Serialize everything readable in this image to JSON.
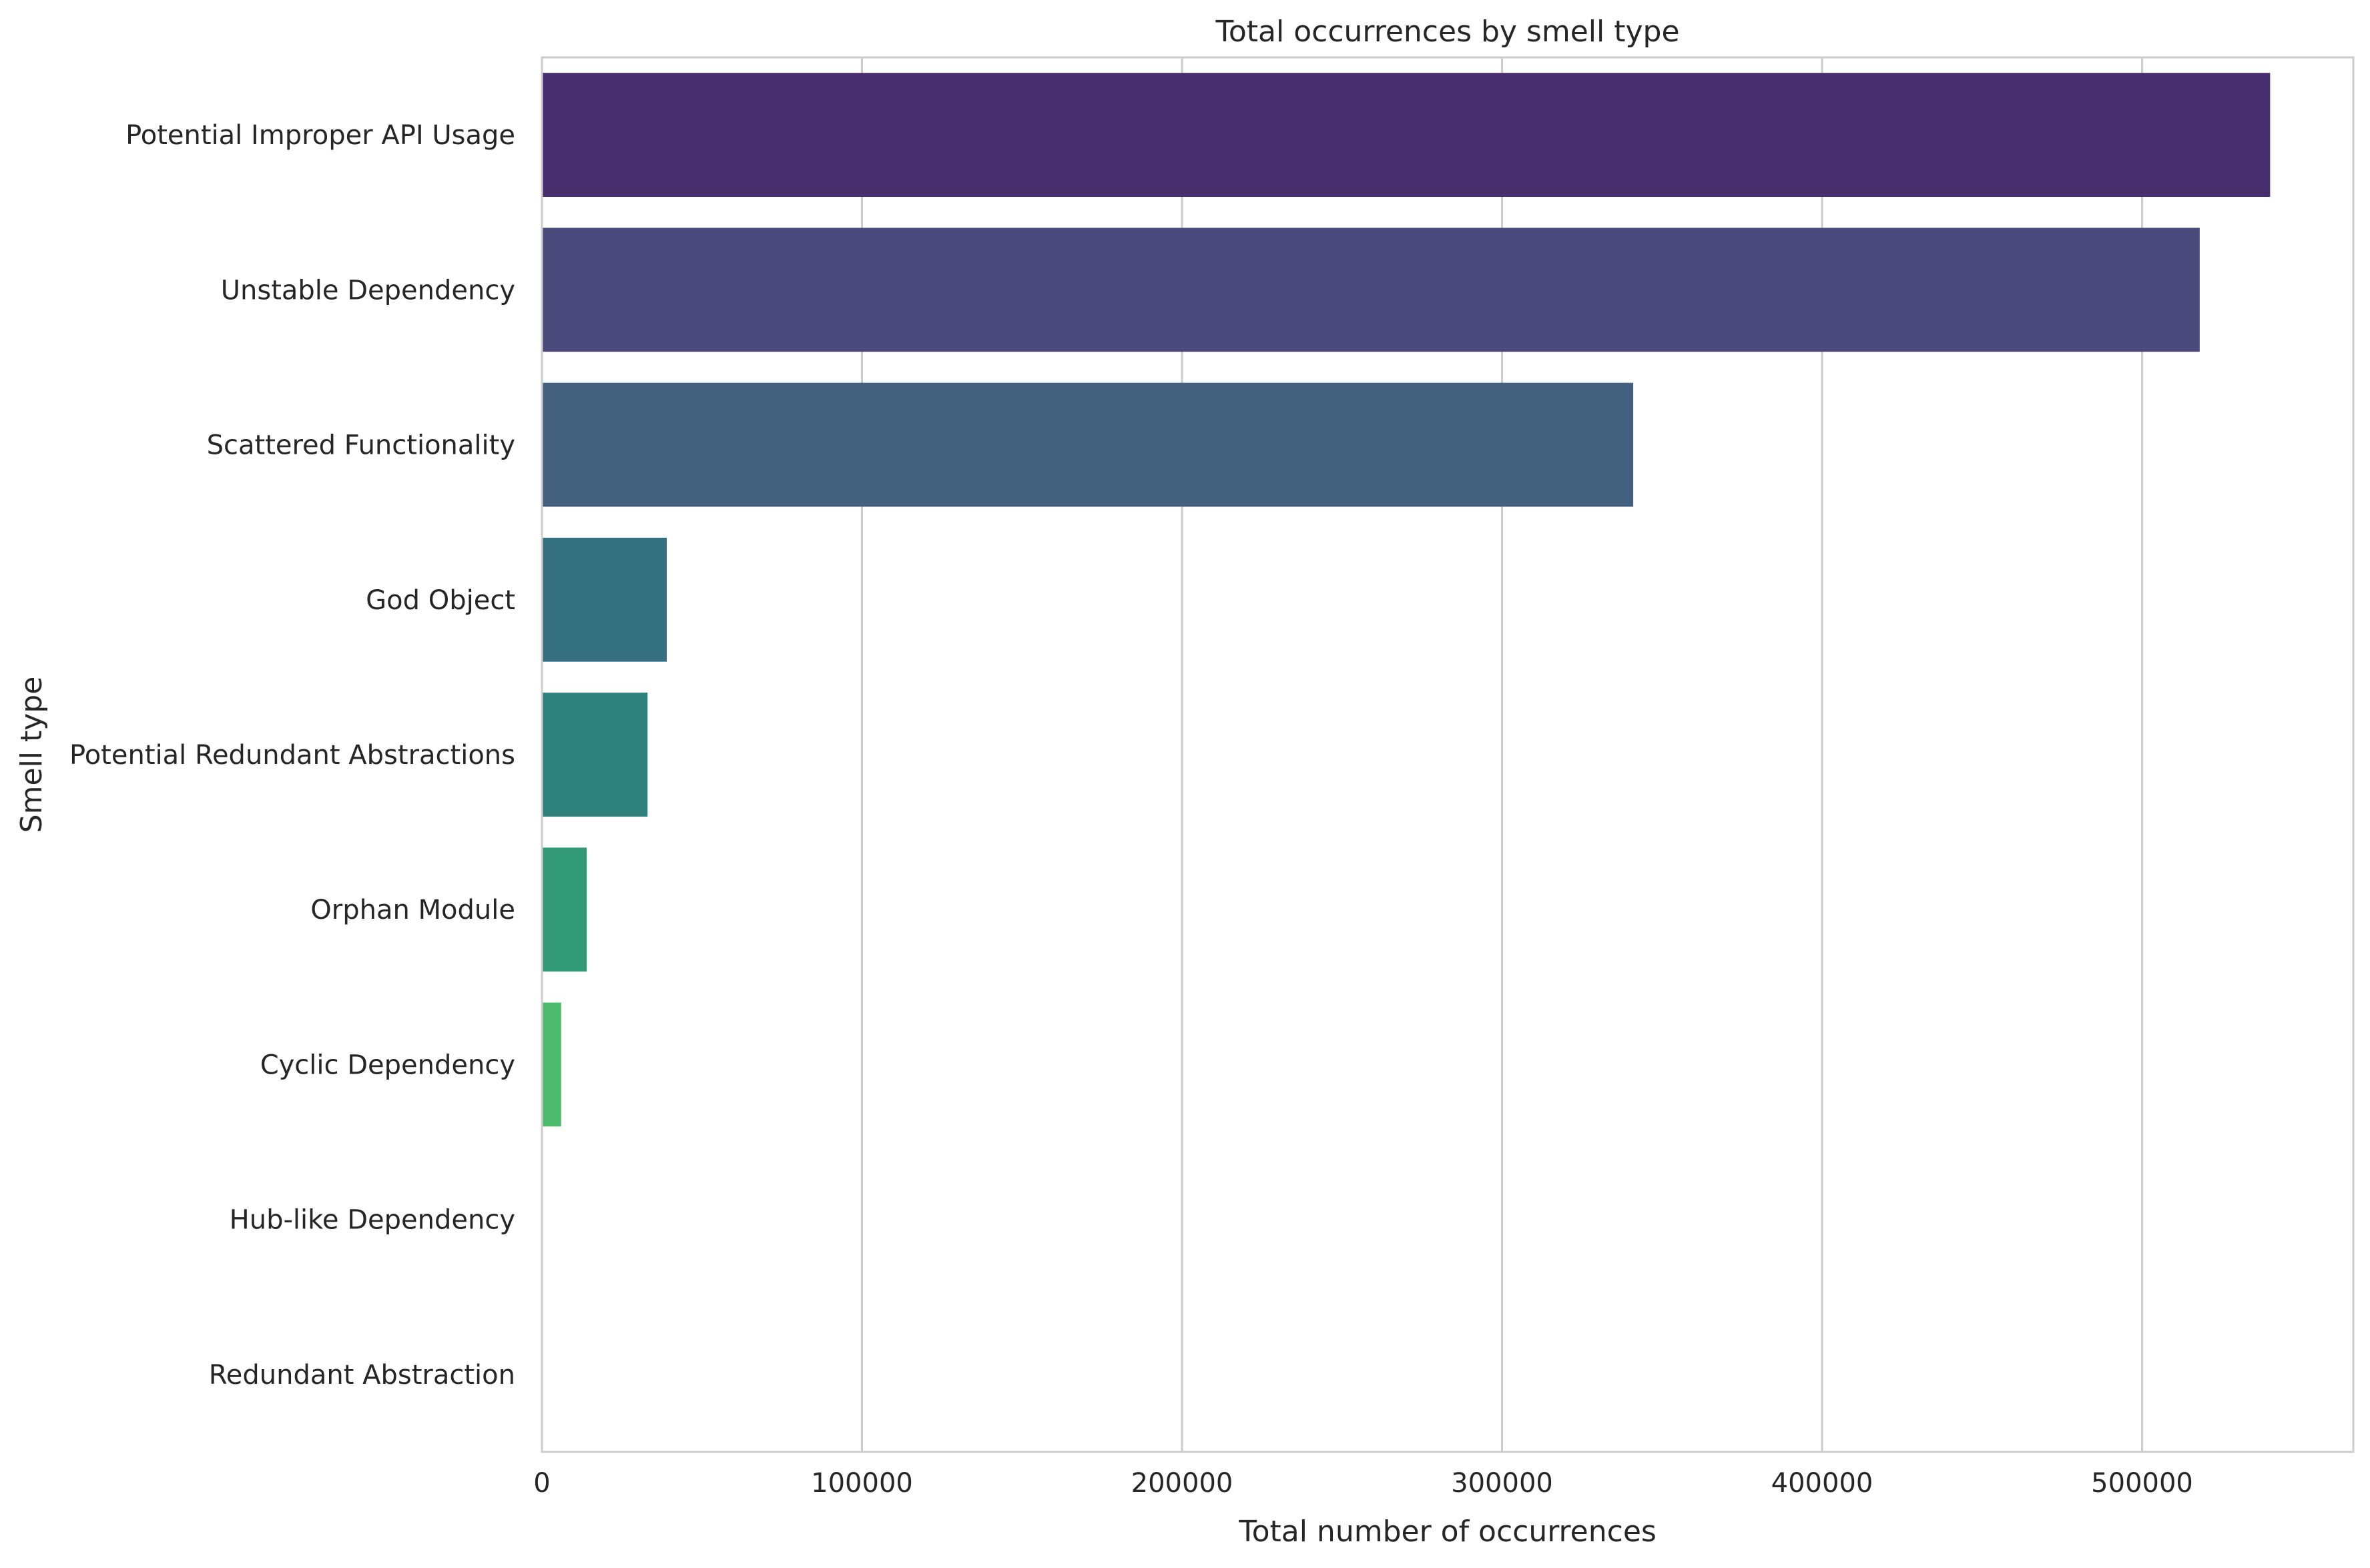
{
  "chart_data": {
    "type": "bar",
    "orientation": "horizontal",
    "title": "Total occurrences by smell type",
    "xlabel": "Total number of occurrences",
    "ylabel": "Smell type",
    "xlim": [
      0,
      566000
    ],
    "xticks": [
      0,
      100000,
      200000,
      300000,
      400000,
      500000
    ],
    "xtick_labels": [
      "0",
      "100000",
      "200000",
      "300000",
      "400000",
      "500000"
    ],
    "grid": true,
    "legend": "none",
    "categories": [
      "Potential Improper API Usage",
      "Unstable Dependency",
      "Scattered Functionality",
      "God Object",
      "Potential Redundant Abstractions",
      "Orphan Module",
      "Cyclic Dependency",
      "Hub-like Dependency",
      "Redundant Abstraction"
    ],
    "values": [
      540000,
      518000,
      341000,
      39000,
      33000,
      14000,
      6000,
      150,
      40
    ],
    "colors": [
      "#472d6b",
      "#4a4b7c",
      "#43617f",
      "#34707f",
      "#2c827b",
      "#339a78",
      "#4dbb6e",
      "#7ad151",
      "#bddf26"
    ]
  }
}
